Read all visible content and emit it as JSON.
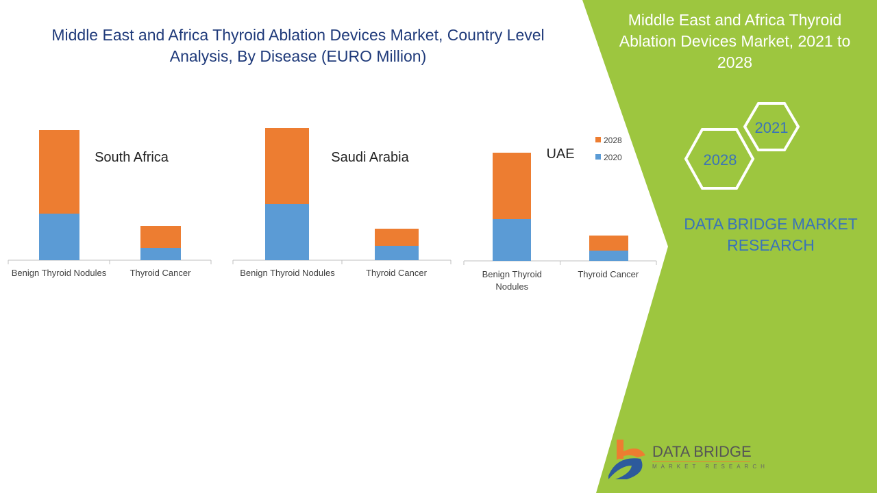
{
  "title": "Middle East and Africa Thyroid Ablation Devices Market, Country Level Analysis, By Disease (EURO Million)",
  "side_panel": {
    "title": "Middle East and Africa Thyroid Ablation Devices Market, 2021 to 2028",
    "hex_labels": [
      "2021",
      "2028"
    ],
    "brand": "DATA BRIDGE MARKET RESEARCH",
    "logo_text": "DATA BRIDGE",
    "logo_sub": "MARKET RESEARCH"
  },
  "colors": {
    "2020": "#5b9bd5",
    "2028": "#ed7d31",
    "panel": "#9dc63f"
  },
  "chart_data": [
    {
      "type": "bar",
      "stacked": true,
      "title": "South Africa",
      "categories": [
        "Benign Thyroid Nodules",
        "Thyroid Cancer"
      ],
      "series": [
        {
          "name": "2020",
          "values": [
            68,
            18
          ]
        },
        {
          "name": "2028",
          "values": [
            122,
            32
          ]
        }
      ],
      "grid": false,
      "y_axis": "hidden"
    },
    {
      "type": "bar",
      "stacked": true,
      "title": "Saudi Arabia",
      "categories": [
        "Benign Thyroid Nodules",
        "Thyroid Cancer"
      ],
      "series": [
        {
          "name": "2020",
          "values": [
            82,
            21
          ]
        },
        {
          "name": "2028",
          "values": [
            111,
            25
          ]
        }
      ],
      "grid": false,
      "y_axis": "hidden"
    },
    {
      "type": "bar",
      "stacked": true,
      "title": "UAE",
      "categories": [
        "Benign Thyroid Nodules",
        "Thyroid Cancer"
      ],
      "series": [
        {
          "name": "2020",
          "values": [
            61,
            15
          ]
        },
        {
          "name": "2028",
          "values": [
            97,
            22
          ]
        }
      ],
      "grid": false,
      "y_axis": "hidden",
      "legend": [
        "2028",
        "2020"
      ],
      "legend_position": "top-right"
    }
  ]
}
